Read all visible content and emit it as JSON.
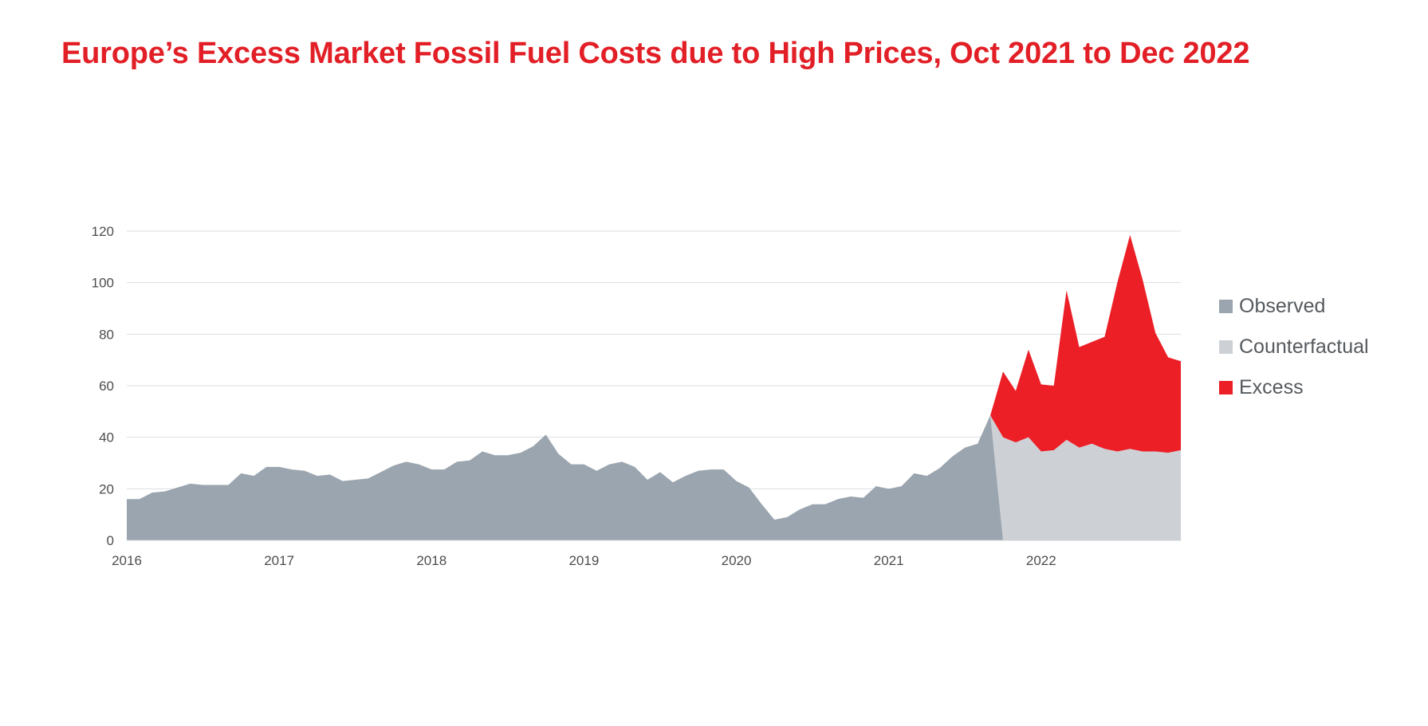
{
  "title": "Europe’s Excess Market Fossil Fuel Costs due to High Prices, Oct 2021 to Dec 2022",
  "chart_data": {
    "type": "area",
    "title": "Europe’s Excess Market Fossil Fuel Costs due to High Prices, Oct 2021 to Dec 2022",
    "xlabel": "",
    "ylabel": "",
    "x_ticks": [
      "2016",
      "2017",
      "2018",
      "2019",
      "2020",
      "2021",
      "2022"
    ],
    "y_ticks": [
      0,
      20,
      40,
      60,
      80,
      100,
      120
    ],
    "ylim": [
      0,
      120
    ],
    "xlim": [
      "2016-01",
      "2022-12"
    ],
    "grid": "horizontal",
    "legend_position": "right",
    "series": [
      {
        "name": "Observed",
        "color": "#9ba5af",
        "x": [
          "2016-01",
          "2016-02",
          "2016-03",
          "2016-04",
          "2016-05",
          "2016-06",
          "2016-07",
          "2016-08",
          "2016-09",
          "2016-10",
          "2016-11",
          "2016-12",
          "2017-01",
          "2017-02",
          "2017-03",
          "2017-04",
          "2017-05",
          "2017-06",
          "2017-07",
          "2017-08",
          "2017-09",
          "2017-10",
          "2017-11",
          "2017-12",
          "2018-01",
          "2018-02",
          "2018-03",
          "2018-04",
          "2018-05",
          "2018-06",
          "2018-07",
          "2018-08",
          "2018-09",
          "2018-10",
          "2018-11",
          "2018-12",
          "2019-01",
          "2019-02",
          "2019-03",
          "2019-04",
          "2019-05",
          "2019-06",
          "2019-07",
          "2019-08",
          "2019-09",
          "2019-10",
          "2019-11",
          "2019-12",
          "2020-01",
          "2020-02",
          "2020-03",
          "2020-04",
          "2020-05",
          "2020-06",
          "2020-07",
          "2020-08",
          "2020-09",
          "2020-10",
          "2020-11",
          "2020-12",
          "2021-01",
          "2021-02",
          "2021-03",
          "2021-04",
          "2021-05",
          "2021-06",
          "2021-07",
          "2021-08",
          "2021-09"
        ],
        "values": [
          16,
          16,
          18.5,
          19,
          20.5,
          22,
          21.5,
          21.5,
          21.5,
          26,
          25,
          28.5,
          28.5,
          27.5,
          27,
          25,
          25.5,
          23,
          23.5,
          24,
          26.5,
          29,
          30.5,
          29.5,
          27.5,
          27.5,
          30.5,
          31,
          34.5,
          33,
          33,
          34,
          36.5,
          41,
          33.5,
          29.5,
          29.5,
          27,
          29.5,
          30.5,
          28.5,
          23.5,
          26.5,
          22.5,
          25,
          27,
          27.5,
          27.5,
          23,
          20.5,
          14,
          8,
          9,
          12,
          14,
          14,
          16,
          17,
          16.5,
          21,
          20,
          21,
          26,
          25,
          28,
          32.5,
          36,
          37.5,
          48.5
        ]
      },
      {
        "name": "Counterfactual",
        "color": "#cdd1d6",
        "x": [
          "2021-09",
          "2021-10",
          "2021-11",
          "2021-12",
          "2022-01",
          "2022-02",
          "2022-03",
          "2022-04",
          "2022-05",
          "2022-06",
          "2022-07",
          "2022-08",
          "2022-09",
          "2022-10",
          "2022-11",
          "2022-12"
        ],
        "values": [
          48.5,
          40,
          38,
          40,
          34.5,
          35,
          39,
          36,
          37.5,
          35.5,
          34.5,
          35.5,
          34.5,
          34.5,
          34,
          35
        ]
      },
      {
        "name": "Excess",
        "color": "#ec1f27",
        "x": [
          "2021-09",
          "2021-10",
          "2021-11",
          "2021-12",
          "2022-01",
          "2022-02",
          "2022-03",
          "2022-04",
          "2022-05",
          "2022-06",
          "2022-07",
          "2022-08",
          "2022-09",
          "2022-10",
          "2022-11",
          "2022-12"
        ],
        "values": [
          48.5,
          65.5,
          58,
          74,
          60.5,
          60,
          97,
          75,
          77,
          79,
          100,
          118.5,
          101,
          80.5,
          71,
          69.5
        ]
      }
    ]
  }
}
